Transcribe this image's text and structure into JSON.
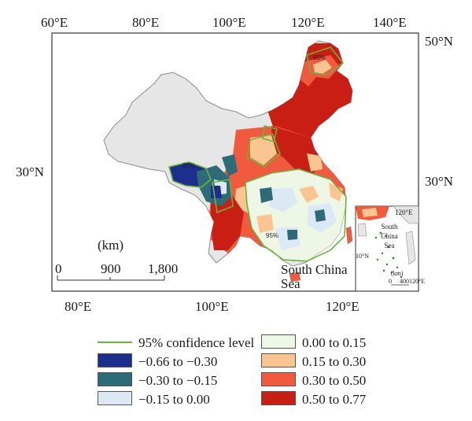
{
  "map": {
    "top_lon_ticks": [
      "60°E",
      "80°E",
      "100°E",
      "120°E",
      "140°E"
    ],
    "bottom_lon_ticks": [
      "80°E",
      "100°E",
      "120°E"
    ],
    "right_lat_ticks": [
      "50°N",
      "30°N"
    ],
    "left_lat_ticks": [
      "30°N"
    ],
    "scale_bar": {
      "unit": "(km)",
      "ticks": [
        "0",
        "900",
        "1,800"
      ]
    },
    "label_south_china_sea": "South China Sea",
    "contour_label": "95%",
    "inset": {
      "label_sea": "South China Sea",
      "lon_tick": "120°E",
      "lat_tick": "10°N",
      "unit": "(km)",
      "scale_ticks": [
        "0",
        "400"
      ],
      "bottom_lon_tick": "120°E"
    }
  },
  "legend": {
    "items": [
      {
        "label": "95% confidence level",
        "kind": "line",
        "color": "#6bb33a"
      },
      {
        "label": "−0.66 to −0.30",
        "kind": "fill",
        "color": "#1c2f8c"
      },
      {
        "label": "−0.30 to −0.15",
        "kind": "fill",
        "color": "#2e6b78"
      },
      {
        "label": "−0.15 to 0.00",
        "kind": "fill",
        "color": "#dce9f4"
      },
      {
        "label": "0.00 to 0.15",
        "kind": "fill",
        "color": "#eef7e6"
      },
      {
        "label": "0.15 to 0.30",
        "kind": "fill",
        "color": "#fbc592"
      },
      {
        "label": "0.30 to 0.50",
        "kind": "fill",
        "color": "#f15a3e"
      },
      {
        "label": "0.50 to 0.77",
        "kind": "fill",
        "color": "#c81e14"
      }
    ]
  },
  "colors": {
    "land": "#e6e6e6",
    "border": "#8c8c8c",
    "frame": "#333333"
  }
}
